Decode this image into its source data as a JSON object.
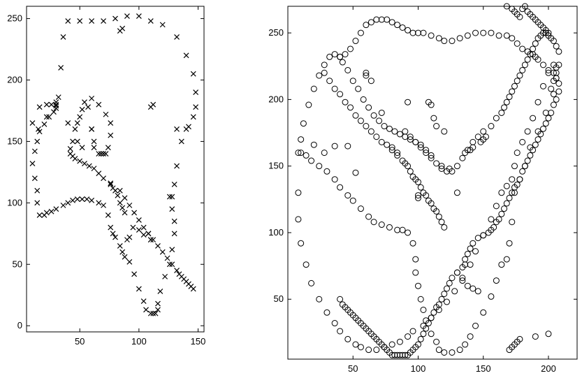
{
  "chart_data": [
    {
      "type": "scatter",
      "marker": "x",
      "color": "#000000",
      "title": "",
      "xlabel": "",
      "ylabel": "",
      "grid": false,
      "xlim": [
        5,
        155
      ],
      "ylim": [
        -5,
        260
      ],
      "xticks": [
        50,
        100,
        150
      ],
      "yticks": [
        0,
        50,
        100,
        150,
        200,
        250
      ],
      "series": [
        {
          "values_x": [
            10,
            16,
            22,
            26,
            30,
            32,
            34,
            36,
            40,
            50,
            60,
            70,
            80,
            90,
            100,
            110,
            120,
            132,
            140,
            146,
            148,
            148,
            146,
            142,
            140,
            136,
            132,
            130,
            126,
            128,
            130,
            130,
            128,
            126,
            122,
            118,
            116,
            116,
            114,
            112,
            110,
            106,
            104,
            100,
            96,
            92,
            88,
            86,
            84,
            80,
            78,
            76,
            74,
            70,
            66,
            60,
            56,
            52,
            48,
            44,
            40,
            36,
            30,
            26,
            22,
            20,
            16,
            14,
            14,
            12,
            10,
            12,
            14,
            16,
            20,
            24,
            28,
            30,
            30,
            30
          ],
          "values_y": [
            165,
            178,
            180,
            180,
            182,
            186,
            210,
            235,
            248,
            248,
            248,
            248,
            250,
            252,
            252,
            248,
            245,
            235,
            220,
            205,
            190,
            178,
            170,
            162,
            160,
            150,
            130,
            115,
            105,
            95,
            85,
            75,
            62,
            50,
            40,
            28,
            18,
            13,
            10,
            10,
            10,
            13,
            20,
            30,
            42,
            52,
            56,
            60,
            65,
            72,
            75,
            80,
            90,
            98,
            100,
            102,
            103,
            103,
            103,
            102,
            100,
            98,
            95,
            93,
            92,
            90,
            90,
            100,
            110,
            120,
            132,
            142,
            150,
            158,
            164,
            170,
            174,
            177,
            179,
            180
          ]
        },
        {
          "values_x": [
            60,
            66,
            72,
            76,
            76,
            74,
            72,
            70,
            66,
            62,
            60,
            57,
            54,
            52,
            50,
            48,
            46,
            44,
            42,
            42,
            44,
            46,
            50,
            54,
            58,
            62,
            66,
            70,
            76,
            84,
            88,
            92,
            96,
            100,
            104,
            108,
            112,
            116,
            120,
            124,
            128,
            132,
            134,
            136,
            138,
            140,
            142,
            144,
            146
          ],
          "values_y": [
            185,
            180,
            172,
            165,
            155,
            145,
            140,
            140,
            140,
            150,
            160,
            178,
            182,
            176,
            170,
            165,
            160,
            150,
            144,
            140,
            138,
            136,
            134,
            132,
            130,
            128,
            124,
            120,
            116,
            110,
            104,
            98,
            92,
            86,
            80,
            75,
            70,
            65,
            60,
            55,
            50,
            45,
            42,
            40,
            38,
            36,
            34,
            32,
            30
          ]
        },
        {
          "values_x": [
            15,
            22,
            40,
            52,
            48,
            60,
            62,
            68,
            84,
            86,
            110,
            112,
            108,
            110,
            132,
            128,
            90,
            92,
            76,
            78,
            80,
            82,
            84,
            86,
            88,
            95,
            100,
            104,
            110
          ],
          "values_y": [
            160,
            170,
            165,
            145,
            150,
            160,
            145,
            140,
            240,
            242,
            178,
            180,
            75,
            70,
            160,
            105,
            70,
            72,
            115,
            112,
            110,
            106,
            100,
            96,
            92,
            80,
            78,
            74,
            70
          ]
        }
      ]
    },
    {
      "type": "scatter",
      "marker": "o",
      "color": "#000000",
      "title": "",
      "xlabel": "",
      "ylabel": "",
      "grid": false,
      "xlim": [
        0,
        222
      ],
      "ylim": [
        5,
        270
      ],
      "xticks": [
        50,
        100,
        150,
        200
      ],
      "yticks": [
        50,
        100,
        150,
        200,
        250
      ],
      "series": [
        {
          "values_x": [
            10,
            14,
            18,
            24,
            30,
            36,
            40,
            46,
            50,
            56,
            62,
            66,
            72,
            78,
            84,
            88,
            92,
            96,
            98,
            98,
            100,
            102,
            104,
            106,
            110,
            114,
            116,
            120,
            126,
            132,
            136,
            140,
            144,
            150,
            156,
            160,
            164,
            168,
            170,
            172,
            174,
            178,
            182,
            186,
            192,
            198,
            204,
            206,
            206,
            204,
            200,
            196,
            192,
            188,
            184,
            180,
            176,
            174,
            172,
            168,
            164,
            160,
            156,
            150,
            144,
            140,
            134,
            128,
            122,
            116,
            110,
            104,
            96,
            92,
            86,
            80,
            74,
            68,
            62,
            56,
            52,
            46,
            40,
            36,
            30,
            24,
            18,
            14,
            10,
            8,
            8
          ],
          "values_y": [
            160,
            158,
            154,
            150,
            146,
            140,
            134,
            128,
            124,
            118,
            112,
            108,
            106,
            104,
            102,
            102,
            100,
            92,
            80,
            70,
            60,
            50,
            42,
            34,
            24,
            18,
            12,
            10,
            10,
            12,
            16,
            22,
            30,
            40,
            52,
            64,
            76,
            80,
            92,
            108,
            130,
            140,
            150,
            164,
            176,
            190,
            204,
            216,
            224,
            226,
            220,
            210,
            198,
            186,
            176,
            168,
            160,
            150,
            140,
            135,
            130,
            120,
            110,
            98,
            86,
            76,
            66,
            56,
            48,
            42,
            36,
            30,
            26,
            22,
            18,
            16,
            14,
            12,
            12,
            14,
            16,
            20,
            26,
            32,
            40,
            50,
            62,
            76,
            92,
            110,
            130
          ]
        },
        {
          "values_x": [
            8,
            10,
            12,
            16,
            20,
            24,
            28,
            32,
            36,
            40,
            42,
            46,
            50,
            54,
            58,
            62,
            66,
            70,
            74,
            78,
            82,
            86,
            90,
            94,
            98,
            102,
            106,
            110,
            114,
            118,
            122,
            126,
            130,
            134,
            138,
            142,
            146,
            150,
            156,
            160,
            164,
            166,
            168,
            170,
            172,
            174,
            176,
            178,
            180,
            182,
            184,
            186,
            188,
            190,
            192,
            194,
            196,
            198,
            200,
            202,
            204,
            206,
            208,
            208,
            206,
            204,
            202
          ],
          "values_y": [
            160,
            170,
            182,
            196,
            208,
            218,
            226,
            232,
            234,
            232,
            228,
            222,
            214,
            208,
            200,
            194,
            188,
            184,
            180,
            178,
            176,
            174,
            172,
            170,
            168,
            166,
            162,
            158,
            152,
            148,
            146,
            146,
            150,
            156,
            162,
            168,
            172,
            176,
            180,
            186,
            190,
            194,
            198,
            202,
            206,
            210,
            214,
            218,
            222,
            226,
            230,
            234,
            238,
            242,
            246,
            248,
            250,
            250,
            248,
            246,
            244,
            240,
            236,
            226,
            220,
            214,
            208
          ]
        },
        {
          "values_x": [
            40,
            44,
            48,
            52,
            56,
            60,
            64,
            68,
            72,
            76,
            80,
            84,
            88,
            92,
            96,
            100,
            104,
            110,
            116,
            120,
            126,
            132,
            138,
            144,
            150,
            156,
            162,
            168,
            172,
            176,
            180,
            184,
            188,
            190,
            192,
            196,
            200,
            204,
            206,
            208,
            208,
            206,
            204,
            202,
            200,
            198,
            196,
            194,
            192,
            190,
            188,
            186,
            184,
            182,
            180,
            178,
            176,
            174,
            172,
            170,
            168,
            166,
            164,
            162,
            160,
            158,
            156,
            154,
            150,
            146,
            142,
            140,
            138,
            136,
            136,
            134,
            130,
            126,
            124,
            122,
            120,
            118,
            116,
            114,
            112,
            110,
            108,
            106,
            104,
            102,
            100,
            98,
            96,
            94,
            92,
            90,
            88,
            86,
            84,
            82,
            80,
            78,
            76,
            74,
            72,
            70,
            68,
            66,
            64,
            62,
            60,
            58,
            56,
            54,
            52,
            50,
            48,
            46,
            44,
            42,
            40
          ],
          "values_y": [
            232,
            234,
            238,
            244,
            250,
            256,
            258,
            260,
            260,
            260,
            258,
            256,
            254,
            252,
            250,
            250,
            250,
            248,
            246,
            244,
            244,
            246,
            248,
            250,
            250,
            250,
            248,
            248,
            246,
            242,
            238,
            236,
            234,
            232,
            230,
            226,
            222,
            220,
            216,
            212,
            206,
            200,
            196,
            190,
            186,
            182,
            178,
            174,
            170,
            166,
            162,
            158,
            154,
            150,
            146,
            140,
            136,
            134,
            130,
            126,
            122,
            118,
            114,
            110,
            108,
            104,
            102,
            100,
            98,
            96,
            92,
            88,
            84,
            80,
            76,
            74,
            70,
            66,
            62,
            58,
            54,
            50,
            46,
            44,
            40,
            36,
            32,
            28,
            24,
            20,
            16,
            14,
            12,
            10,
            8,
            8,
            8,
            8,
            8,
            8,
            8,
            10,
            12,
            14,
            16,
            18,
            20,
            22,
            24,
            26,
            28,
            30,
            32,
            34,
            36,
            38,
            40,
            42,
            44,
            46,
            50
          ]
        },
        {
          "values_x": [
            28,
            32,
            36,
            40,
            44,
            48,
            52,
            56,
            60,
            64,
            68,
            72,
            76,
            80,
            84,
            88,
            90,
            92,
            94,
            96,
            98,
            100,
            102,
            104,
            106,
            108,
            110,
            112,
            114,
            116,
            118,
            120
          ],
          "values_y": [
            220,
            214,
            208,
            204,
            198,
            194,
            188,
            184,
            180,
            176,
            172,
            168,
            166,
            162,
            158,
            154,
            152,
            150,
            146,
            142,
            140,
            138,
            134,
            130,
            128,
            124,
            122,
            118,
            116,
            112,
            108,
            104
          ]
        },
        {
          "values_x": [
            20,
            28,
            36,
            52,
            46,
            60,
            60,
            64,
            72,
            80,
            84,
            92,
            100,
            100,
            108,
            110,
            112,
            114,
            120,
            118,
            124,
            130,
            136,
            140,
            142,
            148,
            150,
            152,
            168,
            172,
            174,
            176,
            178,
            180,
            182,
            184,
            186,
            188,
            190,
            192,
            194,
            196,
            198,
            200,
            170,
            172,
            174,
            176,
            178,
            190,
            200,
            90,
            94,
            98,
            102,
            106,
            110,
            130,
            134,
            138,
            142,
            146
          ],
          "values_y": [
            166,
            160,
            165,
            145,
            165,
            220,
            218,
            214,
            190,
            164,
            160,
            198,
            128,
            126,
            198,
            196,
            186,
            180,
            176,
            150,
            148,
            130,
            160,
            162,
            164,
            168,
            170,
            172,
            270,
            268,
            266,
            264,
            262,
            268,
            270,
            266,
            264,
            262,
            260,
            258,
            256,
            254,
            252,
            250,
            12,
            14,
            16,
            18,
            20,
            22,
            24,
            176,
            172,
            168,
            164,
            160,
            156,
            70,
            64,
            60,
            58,
            56
          ]
        }
      ]
    }
  ]
}
